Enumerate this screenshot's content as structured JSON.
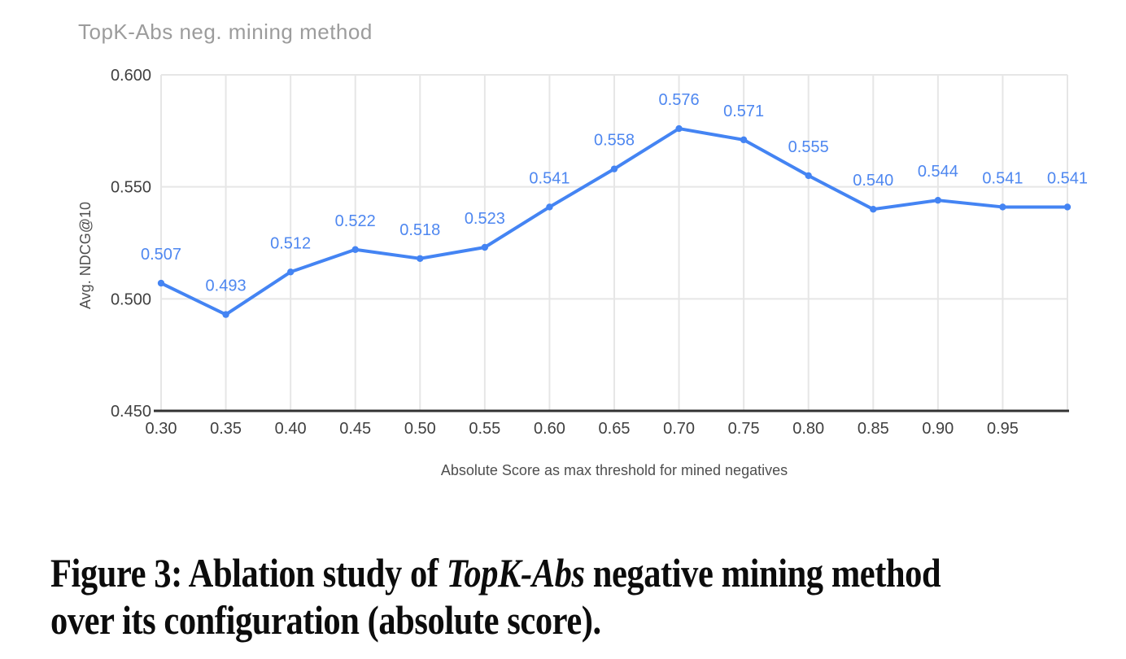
{
  "chart": {
    "title": "TopK-Abs neg. mining method",
    "y_axis_title": "Avg. NDCG@10",
    "x_axis_title": "Absolute Score as max threshold for mined negatives"
  },
  "chart_data": {
    "type": "line",
    "title": "TopK-Abs neg. mining method",
    "xlabel": "Absolute Score as max threshold for mined negatives",
    "ylabel": "Avg. NDCG@10",
    "x": [
      0.3,
      0.35,
      0.4,
      0.45,
      0.5,
      0.55,
      0.6,
      0.65,
      0.7,
      0.75,
      0.8,
      0.85,
      0.9,
      0.95,
      1.0
    ],
    "values": [
      0.507,
      0.493,
      0.512,
      0.522,
      0.518,
      0.523,
      0.541,
      0.558,
      0.576,
      0.571,
      0.555,
      0.54,
      0.544,
      0.541,
      0.541
    ],
    "point_labels": [
      "0.507",
      "0.493",
      "0.512",
      "0.522",
      "0.518",
      "0.523",
      "0.541",
      "0.558",
      "0.576",
      "0.571",
      "0.555",
      "0.540",
      "0.544",
      "0.541",
      "0.541"
    ],
    "x_tick_labels": [
      "0.30",
      "0.35",
      "0.40",
      "0.45",
      "0.50",
      "0.55",
      "0.60",
      "0.65",
      "0.70",
      "0.75",
      "0.80",
      "0.85",
      "0.90",
      "0.95",
      ""
    ],
    "y_ticks": [
      0.45,
      0.5,
      0.55,
      0.6
    ],
    "y_tick_labels": [
      "0.450",
      "0.500",
      "0.550",
      "0.600"
    ],
    "xlim": [
      0.3,
      1.0
    ],
    "ylim": [
      0.45,
      0.6
    ],
    "grid": true,
    "legend": "none",
    "colors": {
      "line": "#4484f3",
      "point": "#4484f3",
      "data_label": "#4e87f0",
      "title": "#9c9c9c",
      "tick_label": "#404040",
      "axis_title": "#4e4e4e",
      "gridline": "#e6e6e6",
      "baseline": "#333333"
    }
  },
  "caption": {
    "line1_prefix": "Figure 3: Ablation study of ",
    "line1_italic": "TopK-Abs",
    "line1_suffix": " negative mining method",
    "line2": "over its configuration (absolute score)."
  }
}
